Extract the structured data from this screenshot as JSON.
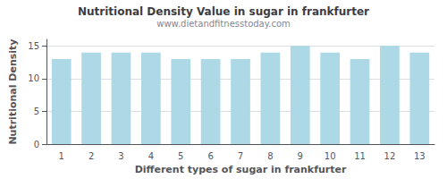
{
  "chart_data": {
    "type": "bar",
    "title": "Nutritional Density Value in sugar in frankfurter",
    "subtitle": "www.dietandfitnesstoday.com",
    "xlabel": "Different types of sugar in frankfurter",
    "ylabel": "Nutritional Density",
    "categories": [
      1,
      2,
      3,
      4,
      5,
      6,
      7,
      8,
      9,
      10,
      11,
      12,
      13
    ],
    "values": [
      13,
      14,
      14,
      14,
      13,
      13,
      13,
      14,
      15,
      14,
      13,
      15,
      14
    ],
    "color": "#add8e6",
    "ylim": [
      0,
      16
    ],
    "yticks": [
      0,
      5,
      10,
      15
    ],
    "grid": true
  }
}
